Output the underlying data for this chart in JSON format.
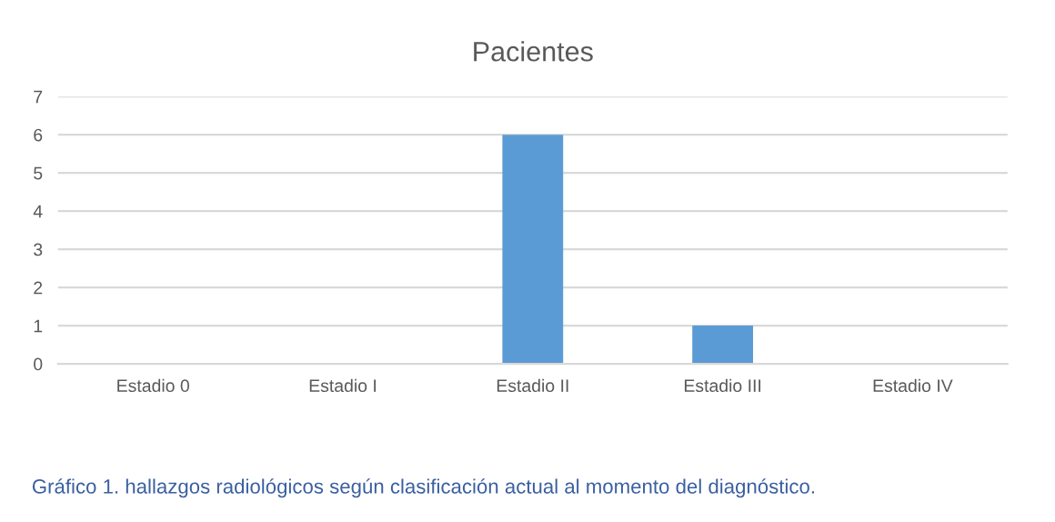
{
  "chart_data": {
    "type": "bar",
    "title": "Pacientes",
    "categories": [
      "Estadio 0",
      "Estadio I",
      "Estadio II",
      "Estadio III",
      "Estadio IV"
    ],
    "values": [
      0,
      0,
      6,
      1,
      0
    ],
    "color": "#5b9bd5",
    "ylim": [
      0,
      7
    ],
    "yticks": [
      0,
      1,
      2,
      3,
      4,
      5,
      6,
      7
    ],
    "grid": "y",
    "annotations": [
      "Gráfico 1. hallazgos radiológicos según clasificación actual al momento del diagnóstico."
    ]
  }
}
